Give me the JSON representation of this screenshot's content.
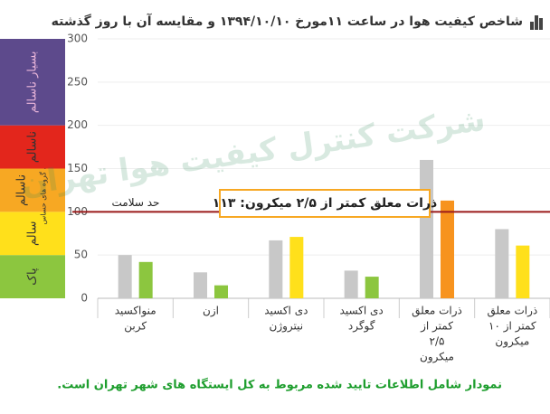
{
  "chart_data": {
    "type": "bar",
    "title": "شاخص کیفیت هوا در ساعت ۱۱مورخ ۱۳۹۴/۱۰/۱۰ و مقایسه آن با روز گذشته",
    "watermark": "شرکت کنترل کیفیت هوا تهران",
    "footnote": "نمودار شامل اطلاعات تایید شده مربوط به کل ایستگاه های شهر تهران است.",
    "categories": [
      [
        "منواکسید",
        "کربن"
      ],
      [
        "ازن"
      ],
      [
        "دی اکسید",
        "نیتروژن"
      ],
      [
        "دی اکسید",
        "گوگرد"
      ],
      [
        "ذرات معلق",
        "کمتر از",
        "۲/۵",
        "میکرون"
      ],
      [
        "ذرات معلق",
        "کمتر از ۱۰",
        "میکرون"
      ]
    ],
    "series": [
      {
        "color": "#c8c8c8",
        "values": [
          50,
          30,
          67,
          32,
          160,
          80
        ]
      },
      {
        "colors": [
          "#8cc63f",
          "#8cc63f",
          "#ffe01b",
          "#8cc63f",
          "#f7931e",
          "#ffe01b"
        ],
        "values": [
          42,
          15,
          71,
          25,
          113,
          61
        ]
      }
    ],
    "ylim": [
      0,
      300
    ],
    "yticks": [
      0,
      50,
      100,
      150,
      200,
      250,
      300
    ],
    "zones": [
      {
        "label": "پاک",
        "from": 0,
        "to": 50,
        "color": "#8cc63f"
      },
      {
        "label": "سالم",
        "from": 50,
        "to": 100,
        "color": "#ffe01b"
      },
      {
        "label": "ناسالم",
        "sublabel": "برای گروه های حساس",
        "from": 100,
        "to": 150,
        "color": "#f7a823"
      },
      {
        "label": "ناسالم",
        "from": 150,
        "to": 200,
        "color": "#e3261c"
      },
      {
        "label": "بسیار ناسالم",
        "from": 200,
        "to": 300,
        "color": "#5d4a8c"
      }
    ],
    "reference_line": {
      "value": 100,
      "label": "حد سلامت",
      "color": "#9b1b1b"
    },
    "annotation": "ذرات معلق کمتر از ۲/۵ میکرون: ۱۱۳"
  }
}
